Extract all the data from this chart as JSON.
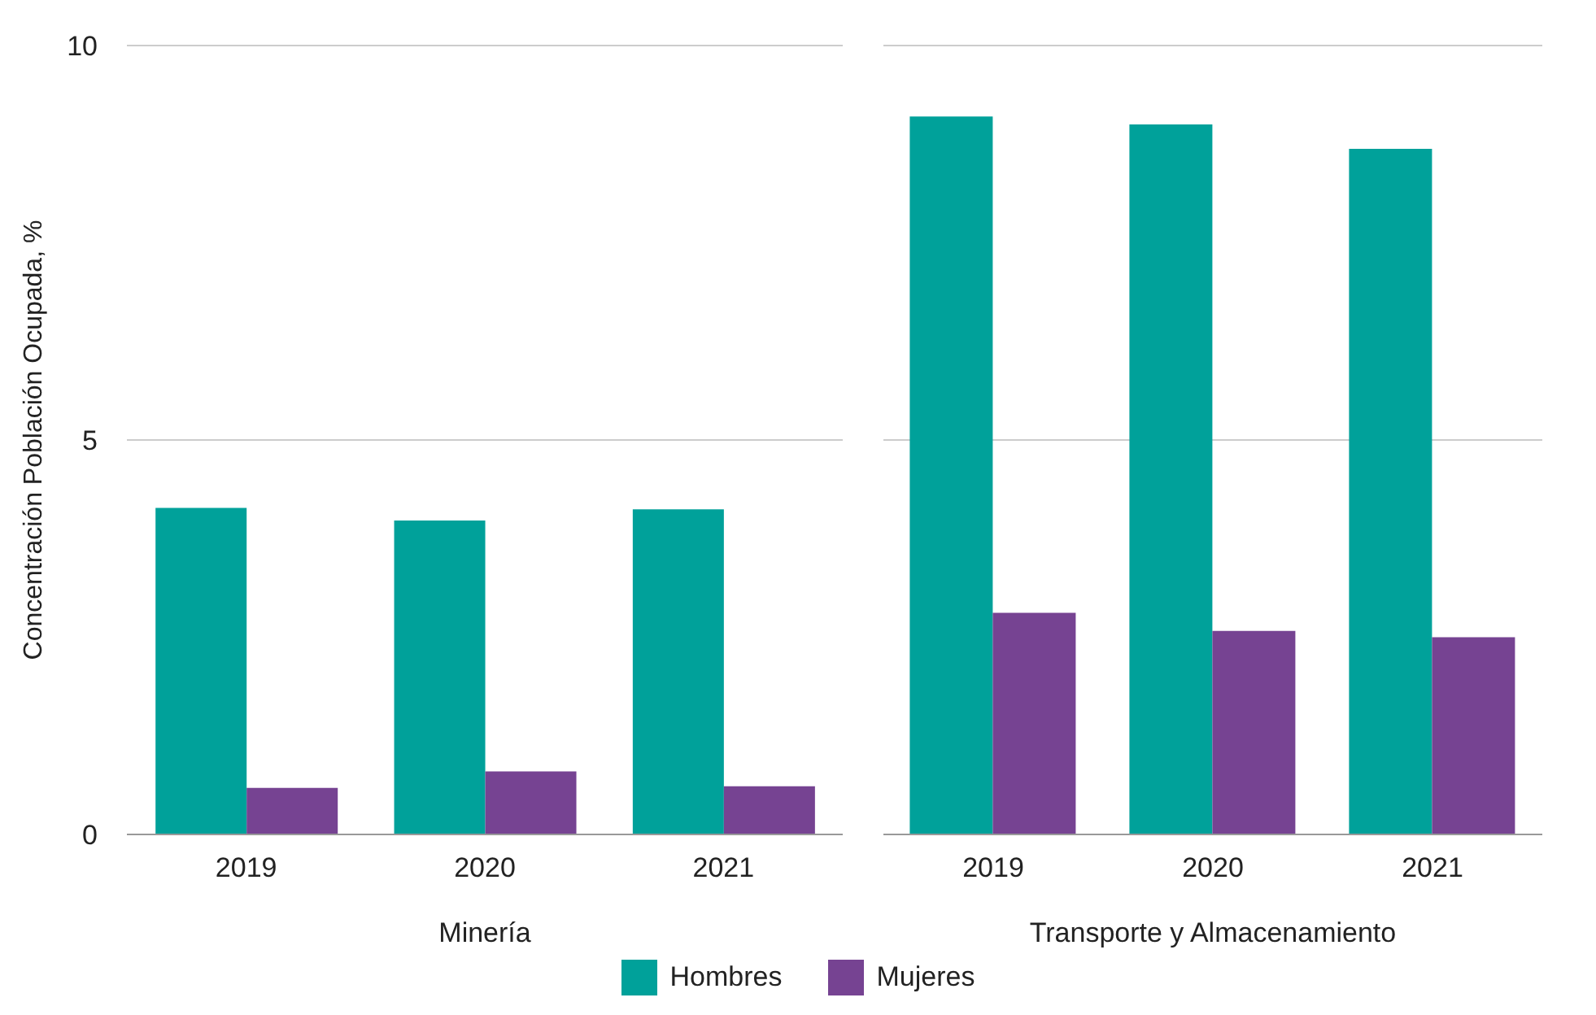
{
  "chart_data": [
    {
      "type": "bar",
      "xlabel": "Minería",
      "ylabel": "Concentración Población Ocupada, %",
      "categories": [
        "2019",
        "2020",
        "2021"
      ],
      "series": [
        {
          "name": "Hombres",
          "color": "#00a19a",
          "values": [
            4.14,
            3.98,
            4.12
          ]
        },
        {
          "name": "Mujeres",
          "color": "#764392",
          "values": [
            0.59,
            0.8,
            0.61
          ]
        }
      ],
      "ylim": [
        0,
        10
      ],
      "yticks": [
        0,
        5,
        10
      ],
      "grid": "y",
      "legend": "bottom"
    },
    {
      "type": "bar",
      "xlabel": "Transporte y Almacenamiento",
      "categories": [
        "2019",
        "2020",
        "2021"
      ],
      "series": [
        {
          "color": "#00a19a",
          "values": [
            9.1,
            9.0,
            8.69
          ]
        },
        {
          "color": "#764392",
          "values": [
            2.81,
            2.58,
            2.5
          ]
        }
      ],
      "ylim": [
        0,
        10
      ],
      "yticks": [
        0,
        5,
        10
      ],
      "grid": "y",
      "tick_labels": "x"
    }
  ]
}
